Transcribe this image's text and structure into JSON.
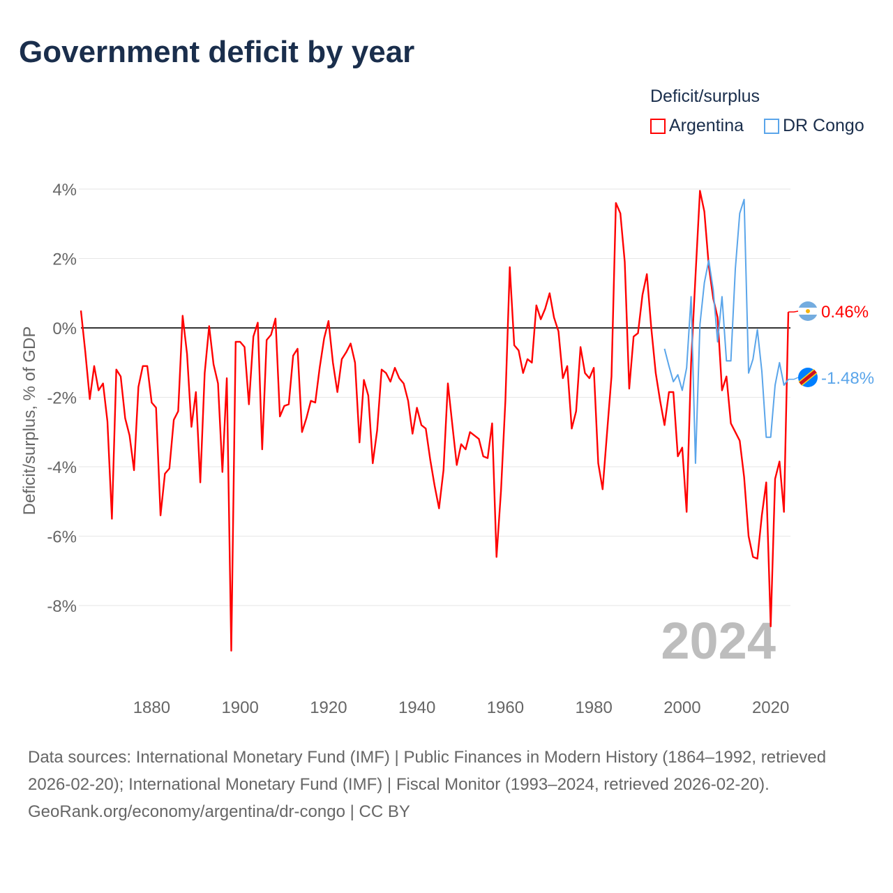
{
  "title": "Government deficit by year",
  "legend": {
    "title": "Deficit/surplus",
    "items": [
      {
        "label": "Argentina",
        "color": "#ff0000"
      },
      {
        "label": "DR Congo",
        "color": "#5aa5ea"
      }
    ]
  },
  "chart_data": {
    "type": "line",
    "title": "Government deficit by year",
    "xlabel": "",
    "ylabel": "Deficit/surplus, % of GDP",
    "xlim": [
      1864,
      2024
    ],
    "ylim": [
      -9.6,
      4.2
    ],
    "x_ticks": [
      1880,
      1900,
      1920,
      1940,
      1960,
      1980,
      2000,
      2020
    ],
    "x_tick_labels": [
      "1880",
      "1900",
      "1920",
      "1940",
      "1960",
      "1980",
      "2000",
      "2020"
    ],
    "y_ticks": [
      4,
      2,
      0,
      -2,
      -4,
      -6,
      -8
    ],
    "y_tick_labels": [
      "4%",
      "2%",
      "0%",
      "-2%",
      "-4%",
      "-6%",
      "-8%"
    ],
    "grid": true,
    "legend_position": "top-right",
    "year_watermark": "2024",
    "series": [
      {
        "name": "Argentina",
        "color": "#ff0000",
        "start_year": 1864,
        "end_label": "0.46%",
        "values": [
          0.5,
          -0.7,
          -2.05,
          -1.1,
          -1.8,
          -1.6,
          -2.7,
          -5.5,
          -1.2,
          -1.4,
          -2.6,
          -3.1,
          -4.1,
          -1.7,
          -1.1,
          -1.1,
          -2.15,
          -2.3,
          -5.4,
          -4.2,
          -4.05,
          -2.65,
          -2.4,
          0.35,
          -0.75,
          -2.85,
          -1.85,
          -4.45,
          -1.3,
          0.05,
          -1.05,
          -1.6,
          -4.15,
          -1.45,
          -9.3,
          -0.4,
          -0.4,
          -0.55,
          -2.2,
          -0.25,
          0.15,
          -3.5,
          -0.35,
          -0.2,
          0.27,
          -2.55,
          -2.25,
          -2.2,
          -0.8,
          -0.6,
          -3.0,
          -2.6,
          -2.1,
          -2.15,
          -1.15,
          -0.3,
          0.2,
          -1.0,
          -1.85,
          -0.9,
          -0.7,
          -0.45,
          -1.0,
          -3.3,
          -1.5,
          -1.95,
          -3.9,
          -2.95,
          -1.2,
          -1.3,
          -1.55,
          -1.15,
          -1.45,
          -1.6,
          -2.1,
          -3.05,
          -2.3,
          -2.8,
          -2.9,
          -3.8,
          -4.55,
          -5.2,
          -4.1,
          -1.6,
          -2.8,
          -3.95,
          -3.35,
          -3.5,
          -3.0,
          -3.1,
          -3.2,
          -3.7,
          -3.75,
          -2.75,
          -6.6,
          -4.7,
          -2.1,
          1.75,
          -0.5,
          -0.65,
          -1.3,
          -0.9,
          -1.0,
          0.65,
          0.25,
          0.55,
          1.0,
          0.3,
          -0.1,
          -1.45,
          -1.1,
          -2.9,
          -2.4,
          -0.55,
          -1.3,
          -1.45,
          -1.15,
          -3.9,
          -4.65,
          -3.0,
          -1.4,
          3.6,
          3.3,
          1.9,
          -1.75,
          -0.25,
          -0.15,
          0.95,
          1.55,
          0.0,
          -1.3,
          -2.1,
          -2.8,
          -1.85,
          -1.85,
          -3.7,
          -3.45,
          -5.3,
          -1.0,
          1.5,
          3.95,
          3.35,
          1.8,
          0.85,
          0.3,
          -1.8,
          -1.4,
          -2.75,
          -3.0,
          -3.25,
          -4.3,
          -6.0,
          -6.6,
          -6.65,
          -5.4,
          -4.45,
          -8.6,
          -4.35,
          -3.85,
          -5.3,
          0.46
        ]
      },
      {
        "name": "DR Congo",
        "color": "#5aa5ea",
        "start_year": 1996,
        "end_label": "-1.48%",
        "values": [
          -0.6,
          -1.1,
          -1.55,
          -1.35,
          -1.8,
          -1.15,
          0.9,
          -3.9,
          0.1,
          1.3,
          1.95,
          1.1,
          -0.4,
          0.9,
          -0.95,
          -0.95,
          1.7,
          3.3,
          3.7,
          -1.3,
          -0.9,
          -0.05,
          -1.25,
          -3.15,
          -3.15,
          -1.65,
          -1.0,
          -1.65,
          -1.48
        ]
      }
    ]
  },
  "footer": {
    "sources": "Data sources: International Monetary Fund (IMF) | Public Finances in Modern History (1864–1992, retrieved 2026-02-20); International Monetary Fund (IMF) | Fiscal Monitor (1993–2024, retrieved 2026-02-20).",
    "credit": "GeoRank.org/economy/argentina/dr-congo | CC BY"
  }
}
